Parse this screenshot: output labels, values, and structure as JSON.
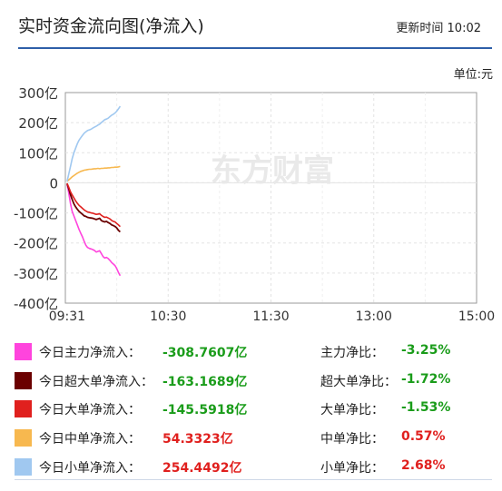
{
  "header": {
    "title": "实时资金流向图(净流入)",
    "update_label": "更新时间",
    "update_time": "10:02"
  },
  "unit_label": "单位:元",
  "watermark": "东方财富",
  "chart_data": {
    "type": "line",
    "title": "",
    "x_ticks": [
      "09:31",
      "10:30",
      "11:30",
      "13:00",
      "15:00"
    ],
    "y_ticks": [
      "300亿",
      "200亿",
      "100亿",
      "0",
      "-100亿",
      "-200亿",
      "-300亿",
      "-400亿"
    ],
    "ylim": [
      -400,
      300
    ],
    "y_unit": "亿",
    "grid": true,
    "x": [
      "09:31",
      "09:32",
      "09:33",
      "09:34",
      "09:35",
      "09:36",
      "09:37",
      "09:38",
      "09:39",
      "09:40",
      "09:41",
      "09:42",
      "09:43",
      "09:44",
      "09:45",
      "09:46",
      "09:47",
      "09:48",
      "09:49",
      "09:50",
      "09:51",
      "09:52",
      "09:53",
      "09:54",
      "09:55",
      "09:56",
      "09:57",
      "09:58",
      "09:59",
      "10:00",
      "10:01",
      "10:02"
    ],
    "series": [
      {
        "name": "今日主力净流入",
        "color": "#ff44dd",
        "values": [
          -5,
          -35,
          -70,
          -95,
          -110,
          -125,
          -140,
          -155,
          -168,
          -180,
          -195,
          -208,
          -215,
          -218,
          -220,
          -222,
          -225,
          -230,
          -228,
          -226,
          -235,
          -245,
          -250,
          -248,
          -252,
          -258,
          -265,
          -270,
          -275,
          -285,
          -298,
          -308.7607
        ]
      },
      {
        "name": "今日超大单净流入",
        "color": "#6b0000",
        "values": [
          -3,
          -20,
          -40,
          -55,
          -70,
          -80,
          -88,
          -95,
          -100,
          -105,
          -110,
          -112,
          -115,
          -116,
          -117,
          -118,
          -120,
          -122,
          -120,
          -118,
          -125,
          -128,
          -130,
          -128,
          -132,
          -135,
          -140,
          -142,
          -145,
          -150,
          -158,
          -163.1689
        ]
      },
      {
        "name": "今日大单净流入",
        "color": "#e0201e",
        "values": [
          -2,
          -15,
          -30,
          -40,
          -50,
          -60,
          -68,
          -75,
          -80,
          -85,
          -90,
          -94,
          -97,
          -98,
          -100,
          -101,
          -103,
          -105,
          -104,
          -103,
          -108,
          -112,
          -115,
          -114,
          -117,
          -120,
          -125,
          -128,
          -130,
          -135,
          -140,
          -145.5918
        ]
      },
      {
        "name": "今日中单净流入",
        "color": "#f7b84f",
        "values": [
          5,
          10,
          15,
          20,
          24,
          28,
          32,
          35,
          38,
          40,
          42,
          43,
          44,
          45,
          45,
          46,
          47,
          47,
          48,
          47,
          48,
          48,
          49,
          49,
          50,
          50,
          51,
          51,
          52,
          52,
          53,
          54.3323
        ]
      },
      {
        "name": "今日小单净流入",
        "color": "#a0c8f0",
        "values": [
          5,
          30,
          55,
          80,
          100,
          115,
          130,
          142,
          150,
          158,
          165,
          170,
          174,
          176,
          178,
          182,
          185,
          188,
          192,
          195,
          200,
          205,
          210,
          212,
          215,
          220,
          225,
          228,
          232,
          238,
          246,
          254.4492
        ]
      }
    ]
  },
  "legend": [
    {
      "name": "今日主力净流入：",
      "value": "-308.7607亿",
      "ratio_name": "主力净比：",
      "ratio": "-3.25%",
      "color": "#ff44dd"
    },
    {
      "name": "今日超大单净流入：",
      "value": "-163.1689亿",
      "ratio_name": "超大单净比：",
      "ratio": "-1.72%",
      "color": "#6b0000"
    },
    {
      "name": "今日大单净流入：",
      "value": "-145.5918亿",
      "ratio_name": "大单净比：",
      "ratio": "-1.53%",
      "color": "#e0201e"
    },
    {
      "name": "今日中单净流入：",
      "value": "54.3323亿",
      "ratio_name": "中单净比：",
      "ratio": "0.57%",
      "color": "#f7b84f"
    },
    {
      "name": "今日小单净流入：",
      "value": "254.4492亿",
      "ratio_name": "小单净比：",
      "ratio": "2.68%",
      "color": "#a0c8f0"
    }
  ]
}
